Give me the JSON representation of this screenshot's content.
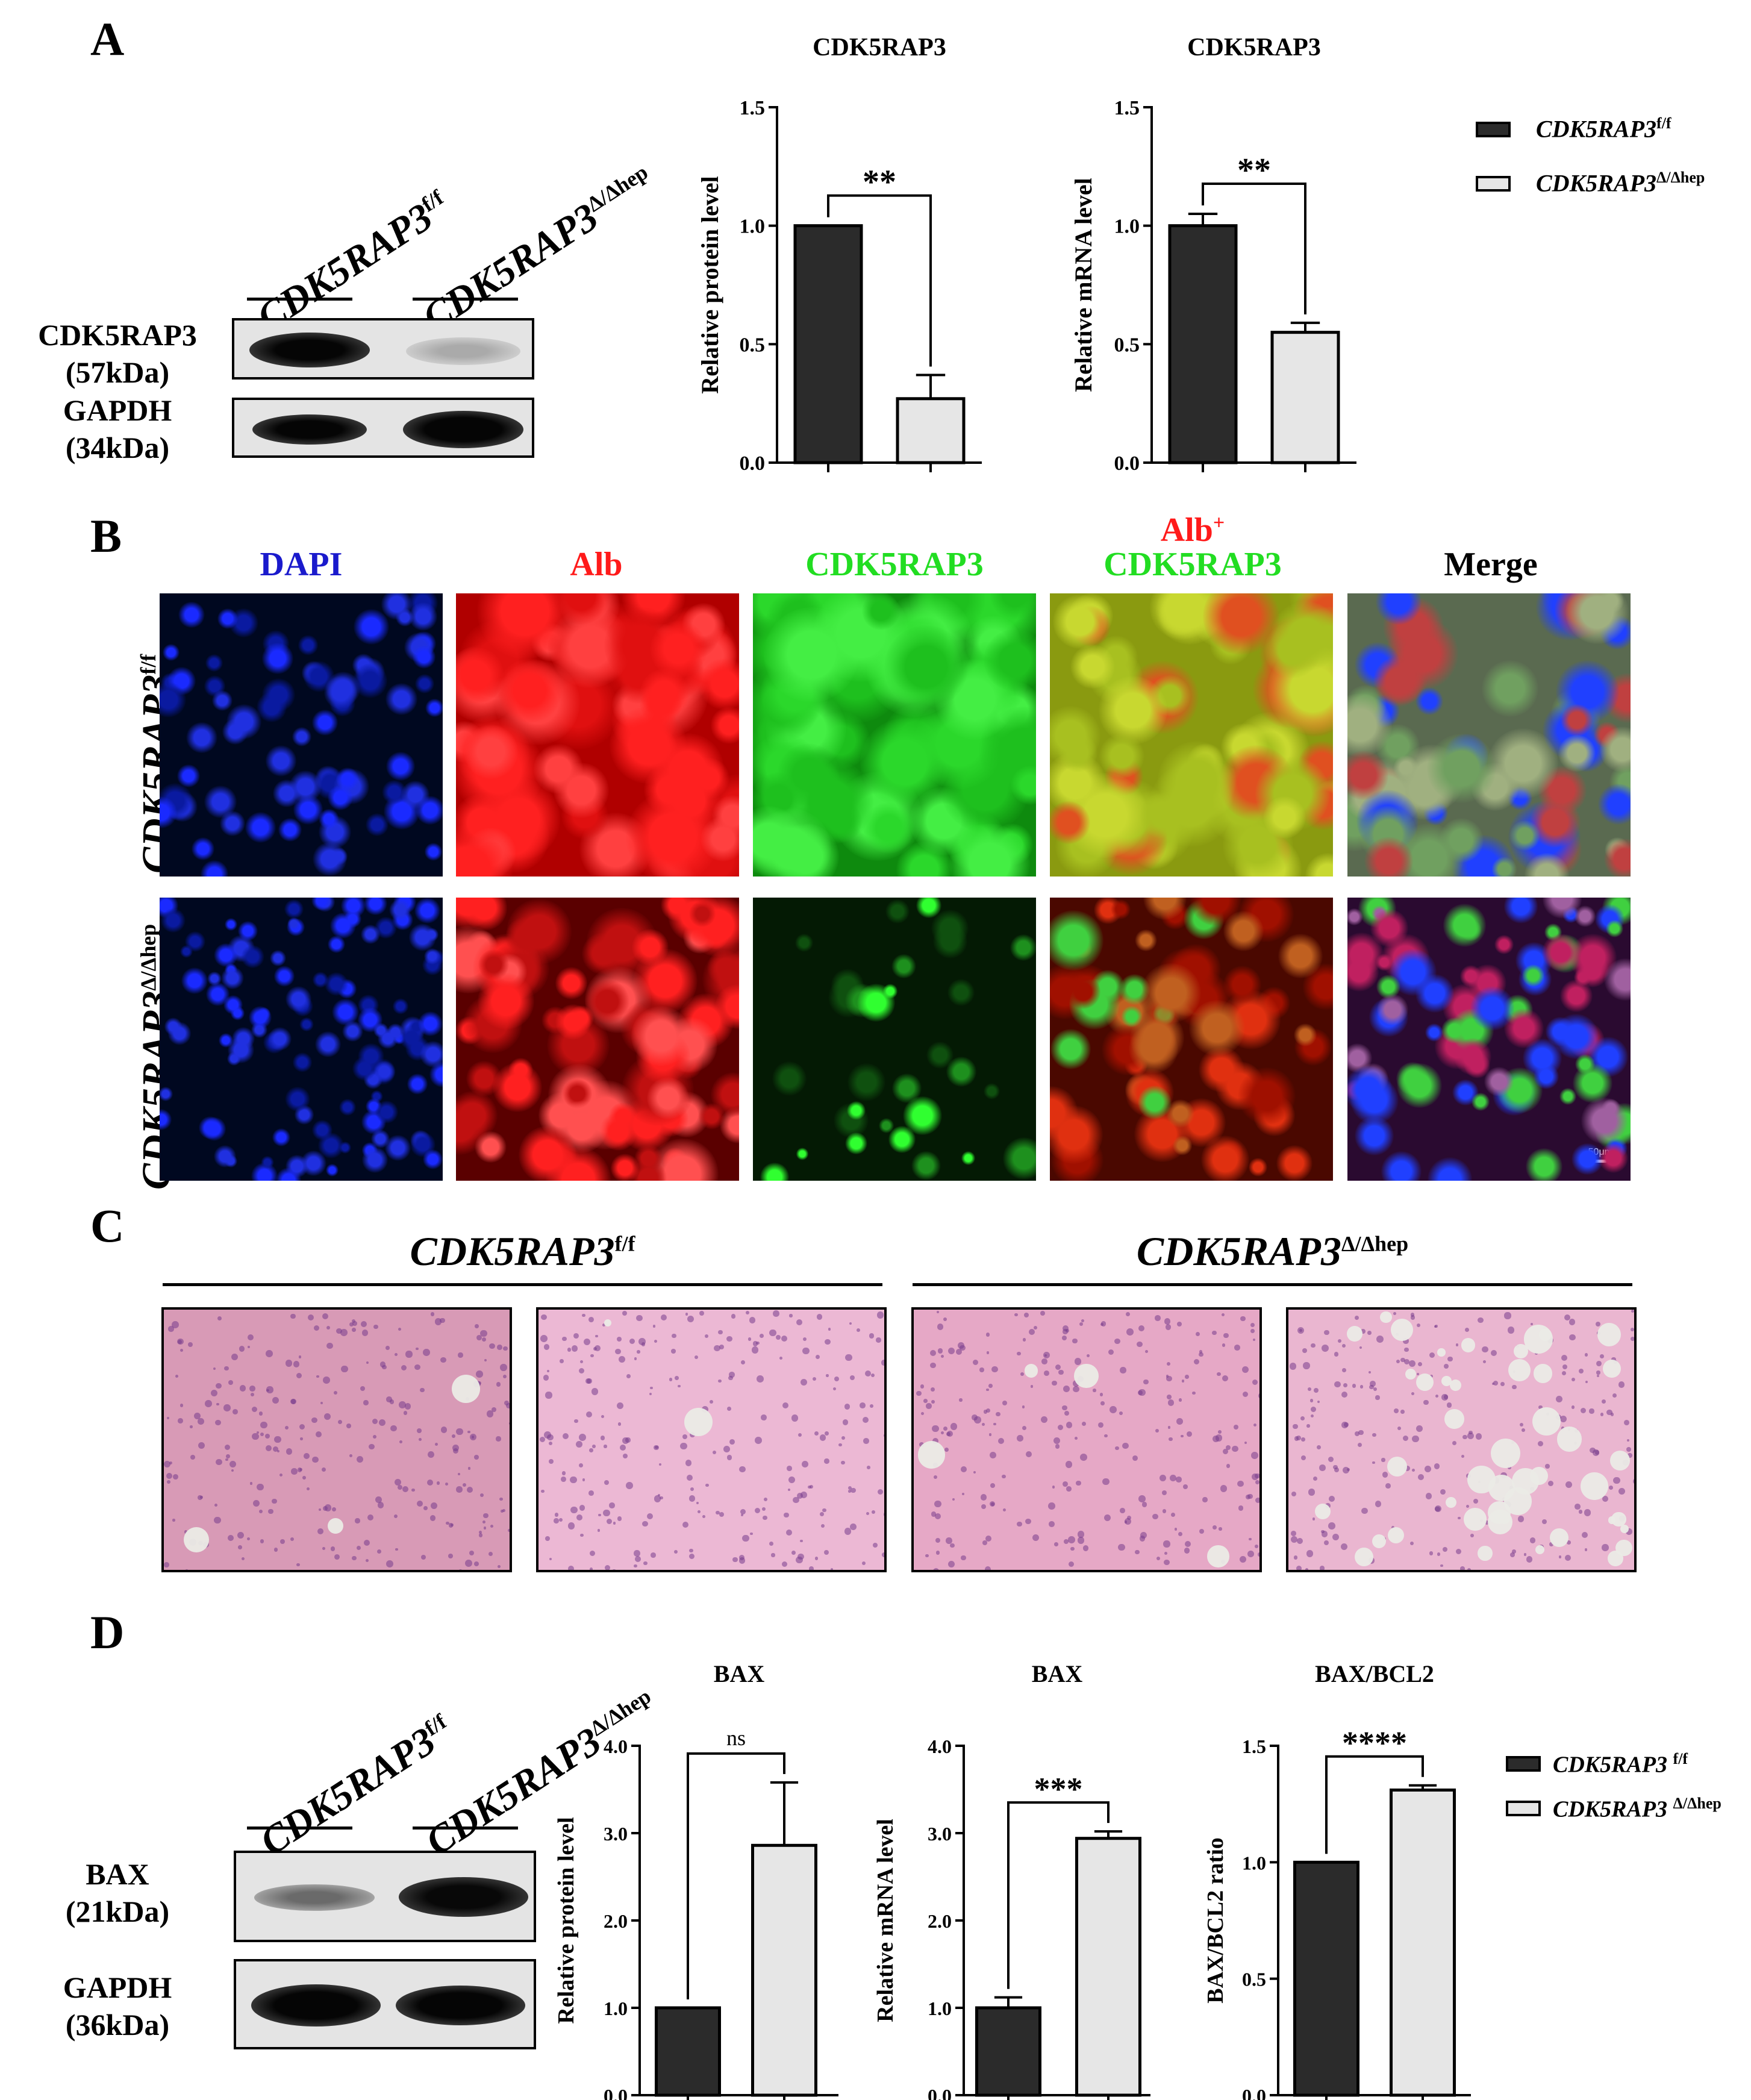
{
  "panels": {
    "a": "A",
    "b": "B",
    "c": "C",
    "d": "D"
  },
  "genotypes": {
    "ff_base": "CDK5RAP3",
    "ff_sup": "f/f",
    "ko_base": "CDK5RAP3",
    "ko_sup": "Δ/Δhep"
  },
  "blotA": {
    "row1_name": "CDK5RAP3",
    "row1_kda": "(57kDa)",
    "row2_name": "GAPDH",
    "row2_kda": "(34kDa)"
  },
  "blotD": {
    "row1_name": "BAX",
    "row1_kda": "(21kDa)",
    "row2_name": "GAPDH",
    "row2_kda": "(36kDa)"
  },
  "panelB": {
    "channels": [
      "DAPI",
      "Alb",
      "CDK5RAP3",
      "CDK5RAP3",
      "Merge"
    ],
    "alb_plus": "Alb",
    "alb_plus_sup": "+",
    "colors": {
      "dapi": "#1a1acc",
      "alb": "#ff1a1a",
      "cdk": "#22dd22",
      "merge": "#000000"
    },
    "scale": "50μm"
  },
  "chart_data": [
    {
      "type": "bar",
      "title": "CDK5RAP3",
      "ylabel": "Relative protein level",
      "categories": [
        "CDK5RAP3 f/f",
        "CDK5RAP3 Δ/Δhep"
      ],
      "values": [
        1.0,
        0.27
      ],
      "errors": [
        0,
        0.1
      ],
      "ylim": [
        0,
        1.5
      ],
      "yticks": [
        "0.0",
        "0.5",
        "1.0",
        "1.5"
      ],
      "significance": "**"
    },
    {
      "type": "bar",
      "title": "CDK5RAP3",
      "ylabel": "Relative mRNA level",
      "categories": [
        "CDK5RAP3 f/f",
        "CDK5RAP3 Δ/Δhep"
      ],
      "values": [
        1.0,
        0.55
      ],
      "errors": [
        0.05,
        0.04
      ],
      "ylim": [
        0,
        1.5
      ],
      "yticks": [
        "0.0",
        "0.5",
        "1.0",
        "1.5"
      ],
      "significance": "**"
    },
    {
      "type": "bar",
      "title": "BAX",
      "ylabel": "Relative protein level",
      "categories": [
        "CDK5RAP3 f/f",
        "CDK5RAP3 Δ/Δhep"
      ],
      "values": [
        1.0,
        2.86
      ],
      "errors": [
        0,
        0.72
      ],
      "ylim": [
        0,
        4.0
      ],
      "yticks": [
        "0.0",
        "1.0",
        "2.0",
        "3.0",
        "4.0"
      ],
      "significance": "ns"
    },
    {
      "type": "bar",
      "title": "BAX",
      "ylabel": "Relative mRNA level",
      "categories": [
        "CDK5RAP3 f/f",
        "CDK5RAP3 Δ/Δhep"
      ],
      "values": [
        1.0,
        2.94
      ],
      "errors": [
        0.12,
        0.08
      ],
      "ylim": [
        0,
        4.0
      ],
      "yticks": [
        "0.0",
        "1.0",
        "2.0",
        "3.0",
        "4.0"
      ],
      "significance": "***"
    },
    {
      "type": "bar",
      "title": "BAX/BCL2",
      "ylabel": "BAX/BCL2  ratio",
      "categories": [
        "CDK5RAP3 f/f",
        "CDK5RAP3 Δ/Δhep"
      ],
      "values": [
        1.0,
        1.31
      ],
      "errors": [
        0,
        0.02
      ],
      "ylim": [
        0,
        1.5
      ],
      "yticks": [
        "0.0",
        "0.5",
        "1.0",
        "1.5"
      ],
      "significance": "****"
    }
  ],
  "legend": {
    "ff": "CDK5RAP3",
    "ff_sup": "f/f",
    "ko": "CDK5RAP3",
    "ko_sup": "Δ/Δhep",
    "colors": {
      "ff": "#2b2b2b",
      "ko": "#e6e6e6"
    }
  }
}
